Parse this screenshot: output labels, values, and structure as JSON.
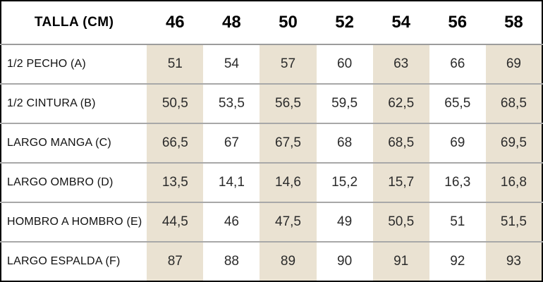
{
  "chart_data": {
    "type": "table",
    "title": "TALLA (CM)",
    "columns": [
      "46",
      "48",
      "50",
      "52",
      "54",
      "56",
      "58"
    ],
    "rows": [
      {
        "label": "1/2 PECHO (A)",
        "values": [
          "51",
          "54",
          "57",
          "60",
          "63",
          "66",
          "69"
        ]
      },
      {
        "label": "1/2 CINTURA (B)",
        "values": [
          "50,5",
          "53,5",
          "56,5",
          "59,5",
          "62,5",
          "65,5",
          "68,5"
        ]
      },
      {
        "label": "LARGO MANGA (C)",
        "values": [
          "66,5",
          "67",
          "67,5",
          "68",
          "68,5",
          "69",
          "69,5"
        ]
      },
      {
        "label": "LARGO OMBRO (D)",
        "values": [
          "13,5",
          "14,1",
          "14,6",
          "15,2",
          "15,7",
          "16,3",
          "16,8"
        ]
      },
      {
        "label": "HOMBRO A HOMBRO (E)",
        "values": [
          "44,5",
          "46",
          "47,5",
          "49",
          "50,5",
          "51",
          "51,5"
        ]
      },
      {
        "label": "LARGO ESPALDA (F)",
        "values": [
          "87",
          "88",
          "89",
          "90",
          "91",
          "92",
          "93"
        ]
      }
    ],
    "layout": {
      "shaded_columns": [
        "46",
        "50",
        "54",
        "58"
      ],
      "shaded_column_bg": "#eae2d2",
      "outer_border_color": "#000000",
      "divider_color": "#a8a8a8",
      "header_divider_color": "#9c9c9c"
    }
  }
}
